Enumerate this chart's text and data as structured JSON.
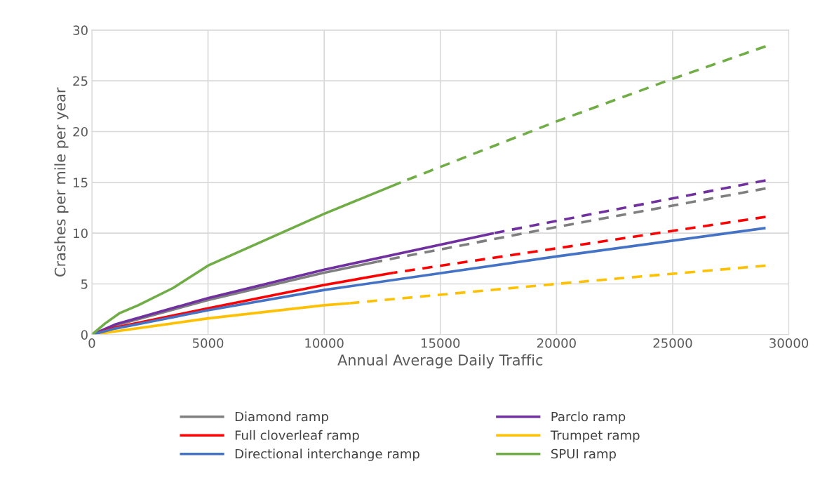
{
  "chart_data": {
    "type": "line",
    "xlabel": "Annual Average Daily Traffic",
    "ylabel": "Crashes per mile per year",
    "xlim": [
      0,
      30000
    ],
    "xticks": [
      0,
      5000,
      10000,
      15000,
      20000,
      25000,
      30000
    ],
    "ylim": [
      0,
      30
    ],
    "yticks": [
      0,
      5,
      10,
      15,
      20,
      25,
      30
    ],
    "grid": true,
    "legend": "bottom",
    "marker": "none",
    "series": [
      {
        "name": "Diamond ramp",
        "color": "#7f7f7f",
        "line_style": "solid",
        "x": [
          0,
          1000,
          5000,
          10000,
          12300
        ],
        "values": [
          0,
          0.9,
          3.4,
          6.1,
          7.2
        ]
      },
      {
        "name": "Parclo ramp",
        "color": "#7030a0",
        "line_style": "solid",
        "x": [
          0,
          1000,
          5000,
          10000,
          17300
        ],
        "values": [
          0,
          1.0,
          3.6,
          6.4,
          10
        ]
      },
      {
        "name": "Full cloverleaf ramp",
        "color": "#ff0000",
        "line_style": "solid",
        "x": [
          0,
          1000,
          5000,
          10000,
          13000
        ],
        "values": [
          0,
          0.7,
          2.6,
          4.9,
          6.1
        ]
      },
      {
        "name": "Trumpet ramp",
        "color": "#ffc000",
        "line_style": "solid",
        "x": [
          0,
          5000,
          10000,
          11100
        ],
        "values": [
          0,
          1.6,
          2.9,
          3.1
        ]
      },
      {
        "name": "Directional interchange ramp",
        "color": "#4472c4",
        "line_style": "solid",
        "x": [
          0,
          1000,
          5000,
          10000,
          20000,
          29000
        ],
        "values": [
          0,
          0.6,
          2.4,
          4.4,
          7.7,
          10.5
        ]
      },
      {
        "name": "SPUI ramp",
        "color": "#70ad47",
        "line_style": "solid",
        "x": [
          0,
          570,
          1180,
          2000,
          3500,
          5000,
          10000,
          13300
        ],
        "values": [
          0,
          1.1,
          2.1,
          2.9,
          4.6,
          6.8,
          11.9,
          15
        ]
      },
      {
        "color": "#7f7f7f",
        "line_style": "dashed",
        "x": [
          12300,
          20000,
          29000
        ],
        "values": [
          7.2,
          10.6,
          14.4
        ]
      },
      {
        "color": "#7030a0",
        "line_style": "dashed",
        "x": [
          17300,
          20000,
          29000
        ],
        "values": [
          10,
          11.2,
          15.2
        ]
      },
      {
        "color": "#ff0000",
        "line_style": "dashed",
        "x": [
          13000,
          20000,
          29000
        ],
        "values": [
          6.1,
          8.5,
          11.6
        ]
      },
      {
        "color": "#ffc000",
        "line_style": "dashed",
        "x": [
          11100,
          20000,
          29000
        ],
        "values": [
          3.1,
          5.0,
          6.8
        ]
      },
      {
        "color": "#70ad47",
        "line_style": "dashed",
        "x": [
          13300,
          20000,
          25000,
          29000
        ],
        "values": [
          15,
          21.0,
          25.2,
          28.4
        ]
      }
    ]
  }
}
